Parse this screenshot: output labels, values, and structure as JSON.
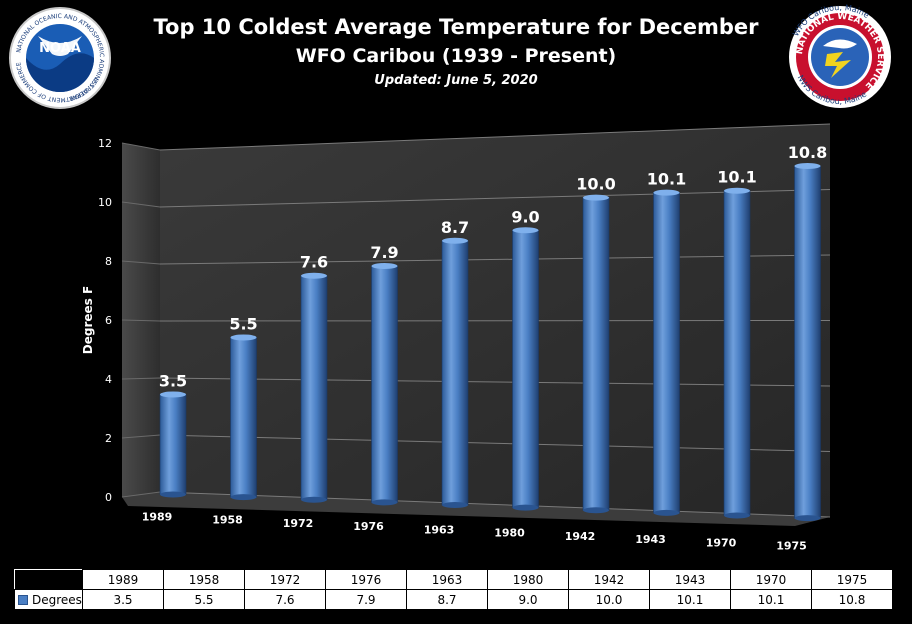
{
  "header": {
    "title": "Top 10 Coldest Average Temperature for December",
    "subtitle": "WFO Caribou (1939 - Present)",
    "updated": "Updated: June 5, 2020"
  },
  "logos": {
    "noaa": {
      "text": "NOAA",
      "ring_text": "NATIONAL OCEANIC AND ATMOSPHERIC ADMINISTRATION",
      "bottom_text": "U.S. DEPARTMENT OF COMMERCE"
    },
    "nws": {
      "top_text": "WFO Caribou, Maine",
      "ring_text": "NATIONAL WEATHER SERVICE",
      "bottom_text": "NWS Caribou, Maine"
    }
  },
  "chart_data": {
    "type": "bar",
    "title": "Top 10 Coldest Average Temperature for December",
    "subtitle": "WFO Caribou (1939 - Present)",
    "ylabel": "Degrees F",
    "xlabel": "",
    "ylim": [
      0,
      12
    ],
    "yticks": [
      0,
      2,
      4,
      6,
      8,
      10,
      12
    ],
    "grid": true,
    "categories": [
      "1989",
      "1958",
      "1972",
      "1976",
      "1963",
      "1980",
      "1942",
      "1943",
      "1970",
      "1975"
    ],
    "values": [
      3.5,
      5.5,
      7.6,
      7.9,
      8.7,
      9.0,
      10.0,
      10.1,
      10.1,
      10.8
    ],
    "labels": [
      "3.5",
      "5.5",
      "7.6",
      "7.9",
      "8.7",
      "9.0",
      "10.0",
      "10.1",
      "10.1",
      "10.8"
    ],
    "series_name": "Degrees",
    "bar_color": "#4a7fc4"
  }
}
